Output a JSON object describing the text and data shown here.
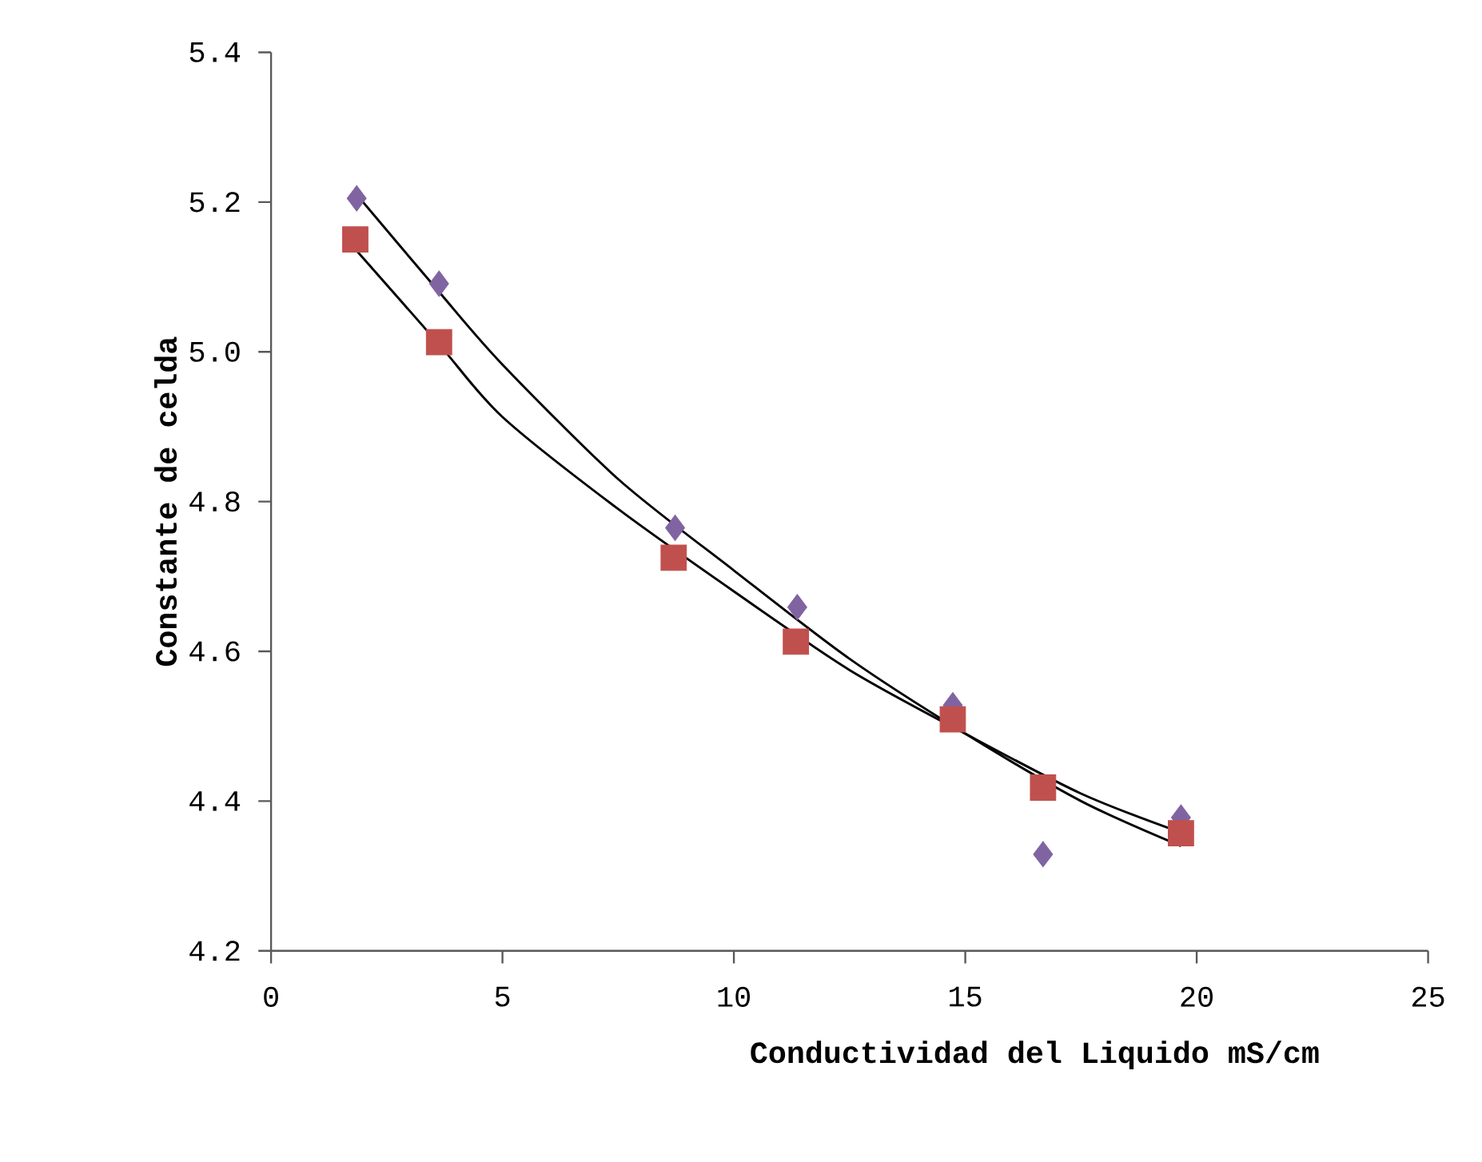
{
  "chart_data": {
    "type": "scatter",
    "xlabel": "Conductividad del Liquido  mS/cm",
    "ylabel": "Constante de celda",
    "xlim": [
      0,
      25
    ],
    "xticks": [
      0,
      5,
      10,
      15,
      20,
      25
    ],
    "ylim": [
      4.2,
      5.4
    ],
    "yticks": [
      4.2,
      4.4,
      4.6,
      4.8,
      {
        "value": 5.0,
        "label": "5.0"
      },
      5.2,
      5.4
    ],
    "series": [
      {
        "type": "scatter",
        "marker": "diamond",
        "color": "#8064a2",
        "x": [
          1.85,
          3.63,
          8.73,
          11.37,
          14.73,
          16.68,
          19.66
        ],
        "values": [
          5.205,
          5.091,
          4.765,
          4.659,
          4.528,
          4.329,
          4.378
        ]
      },
      {
        "type": "scatter",
        "marker": "square",
        "color": "#c0504d",
        "x": [
          1.82,
          3.63,
          8.7,
          11.34,
          14.73,
          16.68,
          19.66
        ],
        "values": [
          5.15,
          5.013,
          4.725,
          4.613,
          4.509,
          4.418,
          4.357
        ]
      },
      {
        "type": "line",
        "marker": "none",
        "color": "#000000",
        "x": [
          1.85,
          3.63,
          5,
          7.5,
          10,
          12.5,
          15,
          17.5,
          19.66
        ],
        "values": [
          5.21,
          5.08,
          4.983,
          4.83,
          4.708,
          4.59,
          4.49,
          4.4,
          4.34
        ]
      },
      {
        "type": "line",
        "marker": "none",
        "color": "#000000",
        "x": [
          1.85,
          3.63,
          5,
          7.5,
          10,
          12.5,
          15,
          17.5,
          19.66
        ],
        "values": [
          5.135,
          5.01,
          4.913,
          4.79,
          4.68,
          4.575,
          4.49,
          4.41,
          4.358
        ]
      }
    ]
  }
}
